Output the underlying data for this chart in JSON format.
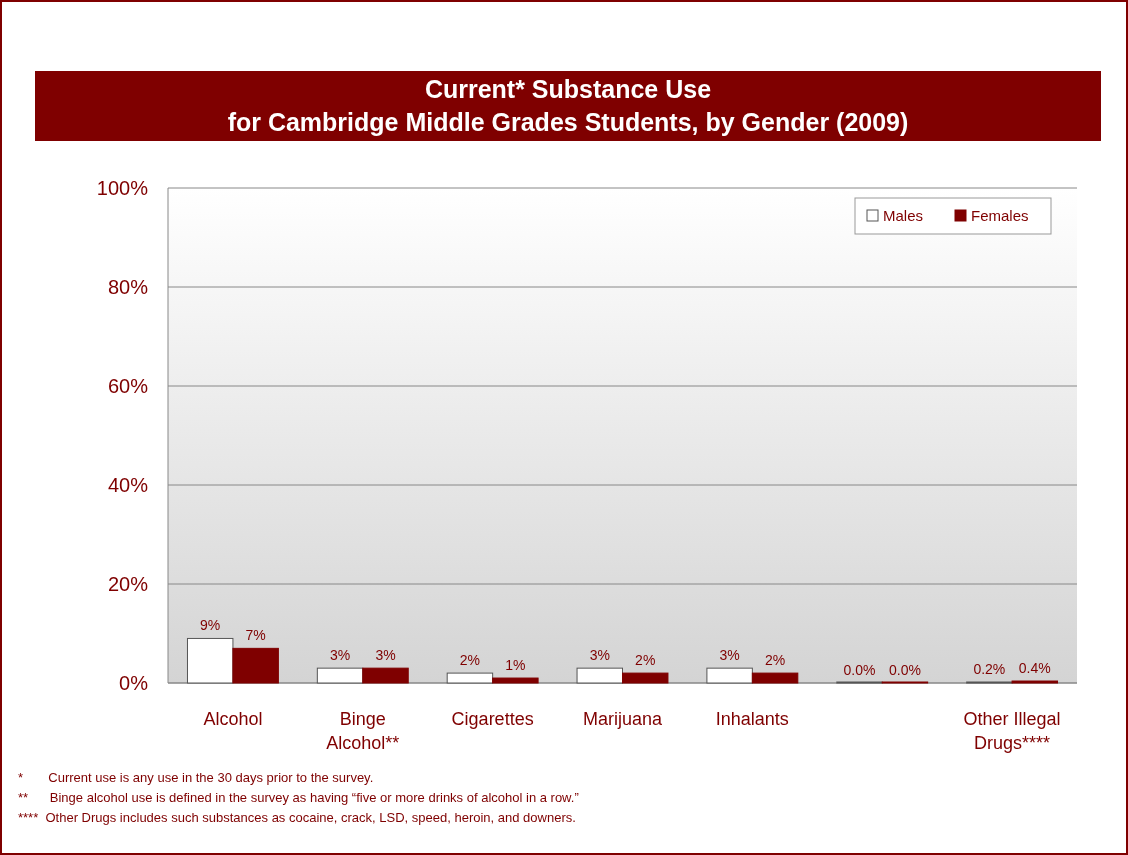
{
  "chart_data": {
    "type": "bar",
    "title": "Current* Substance Use\nfor Cambridge Middle Grades Students, by Gender (2009)",
    "categories": [
      "Alcohol",
      "Binge Alcohol**",
      "Cigarettes",
      "Marijuana",
      "Inhalants",
      null,
      "Other Illegal Drugs****"
    ],
    "series": [
      {
        "name": "Males",
        "color": "#ffffff",
        "values": [
          9,
          3,
          2,
          3,
          3,
          0.0,
          0.2
        ],
        "value_labels": [
          "9%",
          "3%",
          "2%",
          "3%",
          "3%",
          "0.0%",
          "0.2%"
        ]
      },
      {
        "name": "Females",
        "color": "#7f0000",
        "values": [
          7,
          3,
          1,
          2,
          2,
          0.0,
          0.4
        ],
        "value_labels": [
          "7%",
          "3%",
          "1%",
          "2%",
          "2%",
          "0.0%",
          "0.4%"
        ]
      }
    ],
    "ylim": [
      0,
      100
    ],
    "yticks": [
      {
        "value": 0,
        "label": "0%"
      },
      {
        "value": 20,
        "label": "20%"
      },
      {
        "value": 40,
        "label": "40%"
      },
      {
        "value": 60,
        "label": "60%"
      },
      {
        "value": 80,
        "label": "80%"
      },
      {
        "value": 100,
        "label": "100%"
      }
    ],
    "grid": "y",
    "legend": "top right",
    "annotations": [
      "*       Current use is any use in the 30 days prior to the survey.",
      "**      Binge alcohol use is defined in the survey as having “five or more drinks of alcohol in a row.”",
      "****  Other Drugs includes such substances as cocaine, crack, LSD, speed, heroin, and downers."
    ]
  }
}
